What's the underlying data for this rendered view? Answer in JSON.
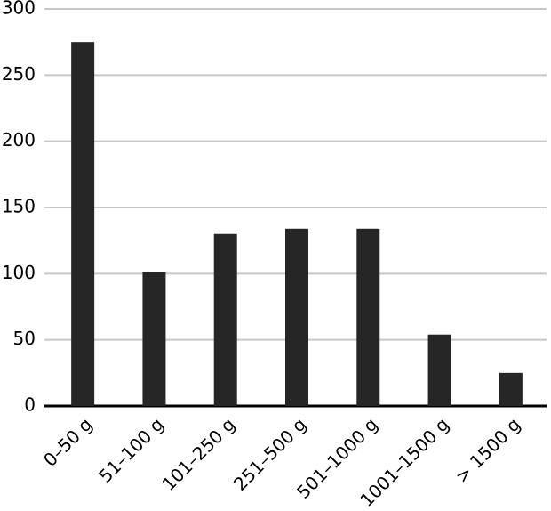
{
  "chart_data": {
    "type": "bar",
    "categories": [
      "0–50 g",
      "51–100 g",
      "101–250 g",
      "251–500 g",
      "501–1000 g",
      "1001–1500 g",
      "> 1500 g"
    ],
    "values": [
      275,
      101,
      130,
      134,
      134,
      54,
      25
    ],
    "color": "#262626",
    "ylim": [
      0,
      300
    ],
    "yticks": [
      0,
      50,
      100,
      150,
      200,
      250,
      300
    ],
    "grid": true
  }
}
